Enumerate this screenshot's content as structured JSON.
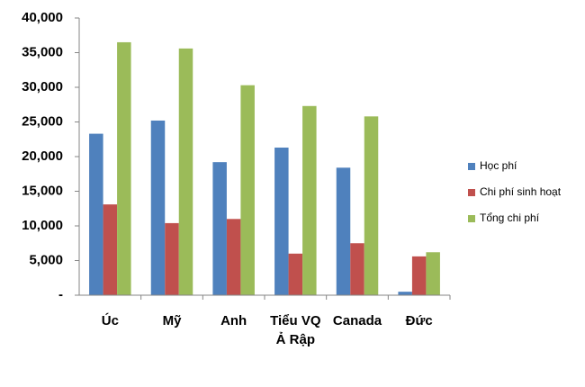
{
  "chart_data": {
    "type": "bar",
    "categories": [
      "Úc",
      "Mỹ",
      "Anh",
      "Tiểu VQ\nẢ Rập",
      "Canada",
      "Đức"
    ],
    "series": [
      {
        "name": "Học phí",
        "color": "#4f81bd",
        "values": [
          23300,
          25200,
          19200,
          21300,
          18400,
          500
        ]
      },
      {
        "name": "Chi phí sinh hoạt",
        "color": "#c0504d",
        "values": [
          13100,
          10400,
          11000,
          6000,
          7500,
          5600
        ]
      },
      {
        "name": "Tổng chi phí",
        "color": "#9bbb59",
        "values": [
          36500,
          35600,
          30300,
          27300,
          25800,
          6200
        ]
      }
    ],
    "ylim": [
      0,
      40000
    ],
    "yticks": [
      {
        "value": 0,
        "label": "-"
      },
      {
        "value": 5000,
        "label": "5,000"
      },
      {
        "value": 10000,
        "label": "10,000"
      },
      {
        "value": 15000,
        "label": "15,000"
      },
      {
        "value": 20000,
        "label": "20,000"
      },
      {
        "value": 25000,
        "label": "25,000"
      },
      {
        "value": 30000,
        "label": "30,000"
      },
      {
        "value": 35000,
        "label": "35,000"
      },
      {
        "value": 40000,
        "label": "40,000"
      }
    ],
    "grid": false,
    "legend": "right"
  }
}
